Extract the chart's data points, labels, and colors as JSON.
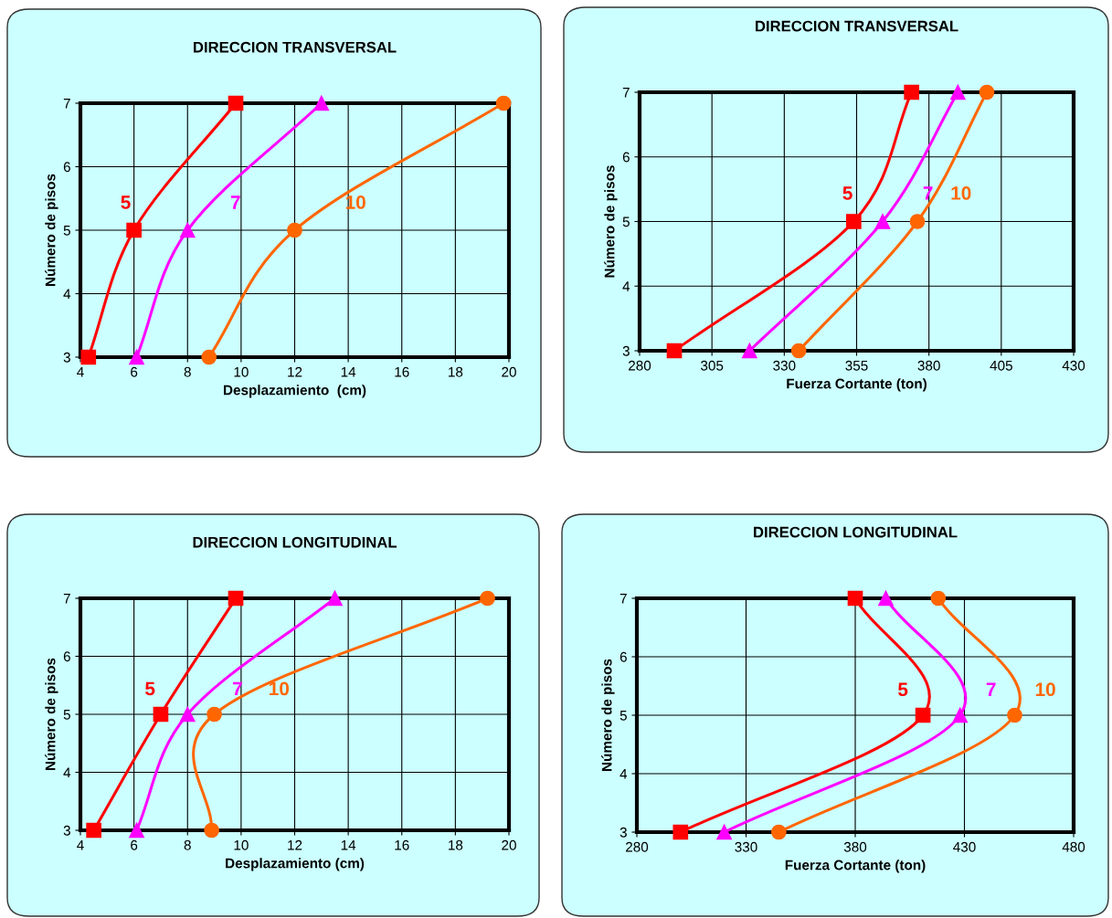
{
  "chart_data": [
    {
      "type": "line",
      "title": "DIRECCION TRANSVERSAL",
      "xlabel": "Desplazamiento  (cm)",
      "ylabel": "Número de pisos",
      "xlim": [
        4,
        20
      ],
      "xticks": [
        4,
        6,
        8,
        10,
        12,
        14,
        16,
        18,
        20
      ],
      "ylim": [
        3,
        7
      ],
      "yticks": [
        3,
        4,
        5,
        6,
        7
      ],
      "grid": true,
      "legend": false,
      "series": [
        {
          "name": "5",
          "color": "#ff0000",
          "marker": "square",
          "x": [
            4.3,
            6.0,
            9.8
          ],
          "values": [
            3,
            5,
            7
          ]
        },
        {
          "name": "7",
          "color": "#ff00ff",
          "marker": "triangle",
          "x": [
            6.1,
            8.0,
            13.0
          ],
          "values": [
            3,
            5,
            7
          ]
        },
        {
          "name": "10",
          "color": "#ff6600",
          "marker": "circle",
          "x": [
            8.8,
            12.0,
            19.8
          ],
          "values": [
            3,
            5,
            7
          ]
        }
      ]
    },
    {
      "type": "line",
      "title": "DIRECCION TRANSVERSAL",
      "xlabel": "Fuerza Cortante (ton)",
      "ylabel": "Número de pisos",
      "xlim": [
        280,
        430
      ],
      "xticks": [
        280,
        305,
        330,
        355,
        380,
        405,
        430
      ],
      "ylim": [
        3,
        7
      ],
      "yticks": [
        3,
        4,
        5,
        6,
        7
      ],
      "grid": true,
      "legend": false,
      "series": [
        {
          "name": "5",
          "color": "#ff0000",
          "marker": "square",
          "x": [
            292,
            354,
            374
          ],
          "values": [
            3,
            5,
            7
          ]
        },
        {
          "name": "7",
          "color": "#ff00ff",
          "marker": "triangle",
          "x": [
            318,
            364,
            390
          ],
          "values": [
            3,
            5,
            7
          ]
        },
        {
          "name": "10",
          "color": "#ff6600",
          "marker": "circle",
          "x": [
            335,
            376,
            400
          ],
          "values": [
            3,
            5,
            7
          ]
        }
      ]
    },
    {
      "type": "line",
      "title": "DIRECCION LONGITUDINAL",
      "xlabel": "Desplazamiento (cm)",
      "ylabel": "Número de pisos",
      "xlim": [
        4,
        20
      ],
      "xticks": [
        4,
        6,
        8,
        10,
        12,
        14,
        16,
        18,
        20
      ],
      "ylim": [
        3,
        7
      ],
      "yticks": [
        3,
        4,
        5,
        6,
        7
      ],
      "grid": true,
      "legend": false,
      "series": [
        {
          "name": "5",
          "color": "#ff0000",
          "marker": "square",
          "x": [
            4.5,
            7.0,
            9.8
          ],
          "values": [
            3,
            5,
            7
          ]
        },
        {
          "name": "7",
          "color": "#ff00ff",
          "marker": "triangle",
          "x": [
            6.1,
            8.0,
            13.5
          ],
          "values": [
            3,
            5,
            7
          ]
        },
        {
          "name": "10",
          "color": "#ff6600",
          "marker": "circle",
          "x": [
            8.9,
            9.0,
            19.2
          ],
          "values": [
            3,
            5,
            7
          ]
        }
      ]
    },
    {
      "type": "line",
      "title": "DIRECCION LONGITUDINAL",
      "xlabel": "Fuerza Cortante (ton)",
      "ylabel": "Número de pisos",
      "xlim": [
        280,
        480
      ],
      "xticks": [
        280,
        330,
        380,
        430,
        480
      ],
      "ylim": [
        3,
        7
      ],
      "yticks": [
        3,
        4,
        5,
        6,
        7
      ],
      "grid": true,
      "legend": false,
      "series": [
        {
          "name": "5",
          "color": "#ff0000",
          "marker": "square",
          "x": [
            300,
            411,
            380
          ],
          "values": [
            3,
            5,
            7
          ]
        },
        {
          "name": "7",
          "color": "#ff00ff",
          "marker": "triangle",
          "x": [
            320,
            428,
            394
          ],
          "values": [
            3,
            5,
            7
          ]
        },
        {
          "name": "10",
          "color": "#ff6600",
          "marker": "circle",
          "x": [
            345,
            453,
            418
          ],
          "values": [
            3,
            5,
            7
          ]
        }
      ]
    }
  ]
}
